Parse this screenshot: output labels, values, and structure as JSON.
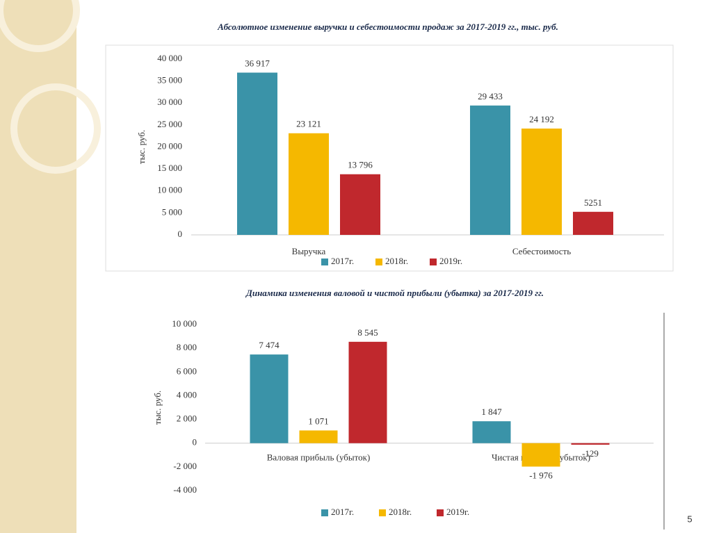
{
  "page_number": "5",
  "chart_data": [
    {
      "type": "bar",
      "title": "Абсолютное изменение выручки и себестоимости продаж за 2017-2019 гг., тыс. руб.",
      "ylabel": "тыс. руб.",
      "categories": [
        "Выручка",
        "Себестоимость"
      ],
      "series": [
        {
          "name": "2017г.",
          "color": "#3a93a8",
          "values": [
            36917,
            29433
          ],
          "value_labels": [
            "36 917",
            "29 433"
          ]
        },
        {
          "name": "2018г.",
          "color": "#f5b800",
          "values": [
            23121,
            24192
          ],
          "value_labels": [
            "23 121",
            "24 192"
          ]
        },
        {
          "name": "2019г.",
          "color": "#c0282d",
          "values": [
            13796,
            5251
          ],
          "value_labels": [
            "13 796",
            "5251"
          ]
        }
      ],
      "ylim": [
        0,
        40000
      ],
      "yticks": [
        0,
        {
          "value": 5000,
          "label": "5 000"
        },
        {
          "value": 10000,
          "label": "10 000"
        },
        {
          "value": 15000,
          "label": "15 000"
        },
        {
          "value": 20000,
          "label": "20 000"
        },
        {
          "value": 25000,
          "label": "25 000"
        },
        {
          "value": 30000,
          "label": "30 000"
        },
        {
          "value": 35000,
          "label": "35 000"
        },
        {
          "value": 40000,
          "label": "40 000"
        }
      ],
      "grid": false,
      "legend": "bottom"
    },
    {
      "type": "bar",
      "title": "Динамика изменения валовой и чистой прибыли (убытка) за 2017-2019 гг.",
      "ylabel": "тыс. руб.",
      "categories": [
        "Валовая прибыль (убыток)",
        "Чистая прибыль (убыток)"
      ],
      "series": [
        {
          "name": "2017г.",
          "color": "#3a93a8",
          "values": [
            7474,
            1847
          ],
          "value_labels": [
            "7 474",
            "1 847"
          ]
        },
        {
          "name": "2018г.",
          "color": "#f5b800",
          "values": [
            1071,
            -1976
          ],
          "value_labels": [
            "1 071",
            "-1 976"
          ]
        },
        {
          "name": "2019г.",
          "color": "#c0282d",
          "values": [
            8545,
            -129
          ],
          "value_labels": [
            "8 545",
            "-129"
          ]
        }
      ],
      "ylim": [
        -4000,
        10000
      ],
      "yticks": [
        {
          "value": -4000,
          "label": "-4 000"
        },
        {
          "value": -2000,
          "label": "-2 000"
        },
        0,
        {
          "value": 2000,
          "label": "2 000"
        },
        {
          "value": 4000,
          "label": "4 000"
        },
        {
          "value": 6000,
          "label": "6 000"
        },
        {
          "value": 8000,
          "label": "8 000"
        },
        {
          "value": 10000,
          "label": "10 000"
        }
      ],
      "grid": false,
      "legend": "bottom"
    }
  ]
}
